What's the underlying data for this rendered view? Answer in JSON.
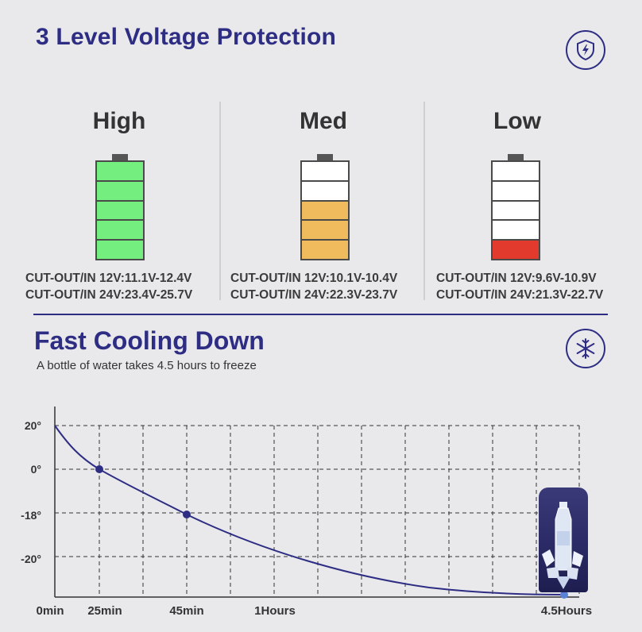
{
  "voltage": {
    "title": "3 Level Voltage Protection",
    "icon": "shield-bolt-icon",
    "levels": [
      {
        "name": "High",
        "color": "#74ee7e",
        "fill_level": 5,
        "spec_12v": "CUT-OUT/IN 12V:11.1V-12.4V",
        "spec_24v": "CUT-OUT/IN 24V:23.4V-25.7V"
      },
      {
        "name": "Med",
        "color": "#f0bb5c",
        "fill_level": 3,
        "spec_12v": "CUT-OUT/IN 12V:10.1V-10.4V",
        "spec_24v": "CUT-OUT/IN 24V:22.3V-23.7V"
      },
      {
        "name": "Low",
        "color": "#e23a2c",
        "fill_level": 1,
        "spec_12v": "CUT-OUT/IN 12V:9.6V-10.9V",
        "spec_24v": "CUT-OUT/IN 24V:21.3V-22.7V"
      }
    ]
  },
  "cooling": {
    "title": "Fast Cooling Down",
    "subtitle": "A bottle of water takes 4.5 hours to freeze",
    "icon": "snowflake-icon",
    "image": "frozen-water-bottle"
  },
  "chart_data": {
    "type": "line",
    "title": "",
    "xlabel": "",
    "ylabel": "",
    "x_tick_labels": [
      "0min",
      "25min",
      "45min",
      "1Hours",
      "4.5Hours"
    ],
    "y_tick_labels": [
      "20°",
      "0°",
      "-18°",
      "-20°"
    ],
    "grid": true,
    "line_color": "#2e2d84",
    "points": [
      {
        "x": "0min",
        "y": "20°"
      },
      {
        "x": "25min",
        "y": "0°"
      },
      {
        "x": "45min",
        "y": "-18°"
      },
      {
        "x": "4.5Hours",
        "y": "below -20°"
      }
    ]
  }
}
